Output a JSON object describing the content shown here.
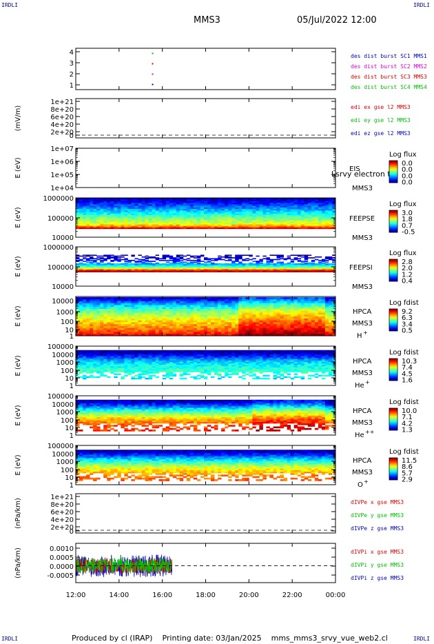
{
  "header": {
    "corner_left": "IRDLI",
    "corner_right": "IRDLI",
    "title": "MMS3",
    "datetime": "05/Jul/2022 12:00"
  },
  "footer": {
    "corner_left": "IRDLI",
    "corner_right": "IRDLI",
    "text": "Produced by cl (IRAP)    Printing date: 03/Jan/2025    mms_mms3_srvy_vue_web2.cl"
  },
  "colors": {
    "frame": "#000000",
    "red": "#e00000",
    "green": "#00c000",
    "blue": "#0000c0",
    "magenta": "#e000e0",
    "hot": "#ff0000",
    "cold": "#0000ff"
  },
  "chart_data": {
    "type": "multi-panel time series / spectrogram",
    "x_ticks": [
      "12:00",
      "14:00",
      "16:00",
      "18:00",
      "20:00",
      "22:00",
      "00:00"
    ],
    "x_range_hours": [
      12,
      24
    ],
    "panels": [
      {
        "id": "burst",
        "type": "scatter",
        "ylabel": "",
        "yticks": [
          "4",
          "3",
          "2",
          "1"
        ],
        "ylim": [
          0.5,
          4.5
        ],
        "points": [
          {
            "x": 15.55,
            "y": 4,
            "color": "green"
          },
          {
            "x": 15.55,
            "y": 3,
            "color": "red"
          },
          {
            "x": 15.55,
            "y": 2,
            "color": "magenta"
          },
          {
            "x": 15.55,
            "y": 1,
            "color": "blue"
          }
        ],
        "legend": [
          {
            "text": "des dist burst SC1 MMS1",
            "color": "blue"
          },
          {
            "text": "des dist burst SC2 MMS2",
            "color": "magenta"
          },
          {
            "text": "des dist burst SC3 MMS3",
            "color": "red"
          },
          {
            "text": "des dist burst SC4 MMS4",
            "color": "green"
          }
        ]
      },
      {
        "id": "edi",
        "type": "line",
        "ylabel": "(mV/m)",
        "yticks": [
          "1e+21",
          "8e+20",
          "6e+20",
          "4e+20",
          "2e+20",
          "0"
        ],
        "ylim": [
          0,
          1e+21
        ],
        "values": [],
        "legend": [
          {
            "text": "edi ex gse l2 MMS3",
            "color": "red"
          },
          {
            "text": "edi ey gse l2 MMS3",
            "color": "green"
          },
          {
            "text": "edi ez gse l2 MMS3",
            "color": "blue"
          }
        ]
      },
      {
        "id": "eis",
        "type": "heatmap",
        "ylabel": "E (eV)",
        "yticks": [
          "1e+07",
          "1e+06",
          "1e+05",
          "1e+04"
        ],
        "ylim": [
          10000.0,
          10000000.0
        ],
        "log_y": true,
        "instrument": "EIS",
        "sc": "MMS3",
        "overlay": "Lsrvy electron to",
        "cb_title": "Log flux",
        "cb_ticks": [
          "0.0",
          "0.0",
          "0.0",
          "0.0"
        ],
        "empty": true
      },
      {
        "id": "feepse",
        "type": "heatmap",
        "ylabel": "E (eV)",
        "yticks": [
          "1000000",
          "100000",
          "10000"
        ],
        "ylim": [
          10000.0,
          1000000.0
        ],
        "log_y": true,
        "instrument": "FEEPSE",
        "sc": "MMS3",
        "cb_title": "Log flux",
        "cb_ticks": [
          "3.0",
          "1.8",
          "0.7",
          "-0.5"
        ],
        "data_range_log_eV": [
          4.43,
          6.0
        ],
        "profile": [
          [
            4.43,
            0.98
          ],
          [
            4.55,
            0.75
          ],
          [
            4.7,
            0.6
          ],
          [
            5.0,
            0.48
          ],
          [
            5.4,
            0.3
          ],
          [
            5.8,
            0.12
          ],
          [
            6.0,
            0.05
          ]
        ]
      },
      {
        "id": "feepsi",
        "type": "heatmap",
        "ylabel": "E (eV)",
        "yticks": [
          "1000000",
          "100000",
          "10000"
        ],
        "ylim": [
          10000.0,
          1000000.0
        ],
        "log_y": true,
        "instrument": "FEEPSI",
        "sc": "MMS3",
        "cb_title": "Log flux",
        "cb_ticks": [
          "2.8",
          "2.0",
          "1.2",
          "0.4"
        ],
        "data_range_log_eV": [
          4.72,
          5.6
        ],
        "profile": [
          [
            4.72,
            0.98
          ],
          [
            4.8,
            0.9
          ],
          [
            4.95,
            0.5
          ],
          [
            5.05,
            0.38
          ],
          [
            5.15,
            0.28
          ],
          [
            5.3,
            0.12
          ],
          [
            5.6,
            0.05
          ]
        ]
      },
      {
        "id": "hpca_h",
        "type": "heatmap",
        "ylabel": "E (eV)",
        "yticks": [
          "10000",
          "1000",
          "100",
          "10",
          "1"
        ],
        "ylim": [
          1,
          30000.0
        ],
        "log_y": true,
        "instrument": "HPCA",
        "sc": "MMS3",
        "species": "H",
        "charge": "+",
        "cb_title": "Log fdist",
        "cb_ticks": [
          "9.2",
          "6.3",
          "3.4",
          "0.5"
        ],
        "data_range_log_eV": [
          0.05,
          4.4
        ],
        "profile": [
          [
            0.05,
            0.9
          ],
          [
            0.4,
            0.82
          ],
          [
            0.9,
            0.75
          ],
          [
            1.5,
            0.68
          ],
          [
            2.2,
            0.58
          ],
          [
            3.0,
            0.45
          ],
          [
            3.6,
            0.3
          ],
          [
            4.1,
            0.15
          ],
          [
            4.4,
            0.05
          ]
        ]
      },
      {
        "id": "hpca_he",
        "type": "heatmap",
        "ylabel": "E (eV)",
        "yticks": [
          "100000",
          "10000",
          "1000",
          "100",
          "10",
          "1"
        ],
        "ylim": [
          1,
          100000.0
        ],
        "log_y": true,
        "instrument": "HPCA",
        "sc": "MMS3",
        "species": "He",
        "charge": "+",
        "cb_title": "Log fdist",
        "cb_ticks": [
          "10.3",
          "7.4",
          "4.5",
          "1.6"
        ],
        "data_range_log_eV": [
          0.8,
          4.5
        ],
        "profile": [
          [
            0.8,
            0.35
          ],
          [
            1.4,
            0.4
          ],
          [
            2.0,
            0.42
          ],
          [
            2.6,
            0.38
          ],
          [
            3.2,
            0.3
          ],
          [
            3.8,
            0.15
          ],
          [
            4.2,
            0.05
          ],
          [
            4.5,
            0.03
          ]
        ]
      },
      {
        "id": "hpca_hepp",
        "type": "heatmap",
        "ylabel": "E (eV)",
        "yticks": [
          "100000",
          "10000",
          "1000",
          "100",
          "10",
          "1"
        ],
        "ylim": [
          1,
          100000.0
        ],
        "log_y": true,
        "instrument": "HPCA",
        "sc": "MMS3",
        "species": "He",
        "charge": "++",
        "cb_title": "Log fdist",
        "cb_ticks": [
          "10.0",
          "7.1",
          "4.2",
          "1.3"
        ],
        "data_range_log_eV": [
          0.5,
          4.5
        ],
        "profile": [
          [
            0.5,
            0.85
          ],
          [
            1.2,
            0.8
          ],
          [
            2.0,
            0.7
          ],
          [
            2.6,
            0.55
          ],
          [
            3.2,
            0.4
          ],
          [
            3.8,
            0.2
          ],
          [
            4.2,
            0.08
          ],
          [
            4.5,
            0.03
          ]
        ]
      },
      {
        "id": "hpca_o",
        "type": "heatmap",
        "ylabel": "E (eV)",
        "yticks": [
          "100000",
          "10000",
          "1000",
          "100",
          "10",
          "1"
        ],
        "ylim": [
          1,
          100000.0
        ],
        "log_y": true,
        "instrument": "HPCA",
        "sc": "MMS3",
        "species": "O",
        "charge": "+",
        "cb_title": "Log fdist",
        "cb_ticks": [
          "11.5",
          "8.6",
          "5.7",
          "2.9"
        ],
        "data_range_log_eV": [
          0.5,
          4.45
        ],
        "profile": [
          [
            0.5,
            0.8
          ],
          [
            1.4,
            0.72
          ],
          [
            2.2,
            0.6
          ],
          [
            2.8,
            0.45
          ],
          [
            3.4,
            0.3
          ],
          [
            3.9,
            0.15
          ],
          [
            4.2,
            0.06
          ],
          [
            4.45,
            0.03
          ]
        ]
      },
      {
        "id": "divpe",
        "type": "line",
        "ylabel": "(nPa/km)",
        "yticks": [
          "1e+21",
          "8e+20",
          "6e+20",
          "4e+20",
          "2e+20",
          "0"
        ],
        "ylim": [
          0,
          1e+21
        ],
        "values": [],
        "legend": [
          {
            "text": "dIVPe x gse MMS3",
            "color": "red"
          },
          {
            "text": "dIVPe y gse MMS3",
            "color": "green"
          },
          {
            "text": "dIVPe z gse MMS3",
            "color": "blue"
          }
        ]
      },
      {
        "id": "divpi",
        "type": "line",
        "ylabel": "(nPa/km)",
        "yticks": [
          "0.0010",
          "0.0005",
          "0.0000",
          "-0.0005"
        ],
        "ylim": [
          -0.0009,
          0.0012
        ],
        "data_span_hours": [
          12,
          16.45
        ],
        "noise_amplitude": 0.0006,
        "legend": [
          {
            "text": "dIVPi x gse MMS3",
            "color": "red"
          },
          {
            "text": "dIVPi y gse MMS3",
            "color": "green"
          },
          {
            "text": "dIVPi z gse MMS3",
            "color": "blue"
          }
        ]
      }
    ]
  }
}
